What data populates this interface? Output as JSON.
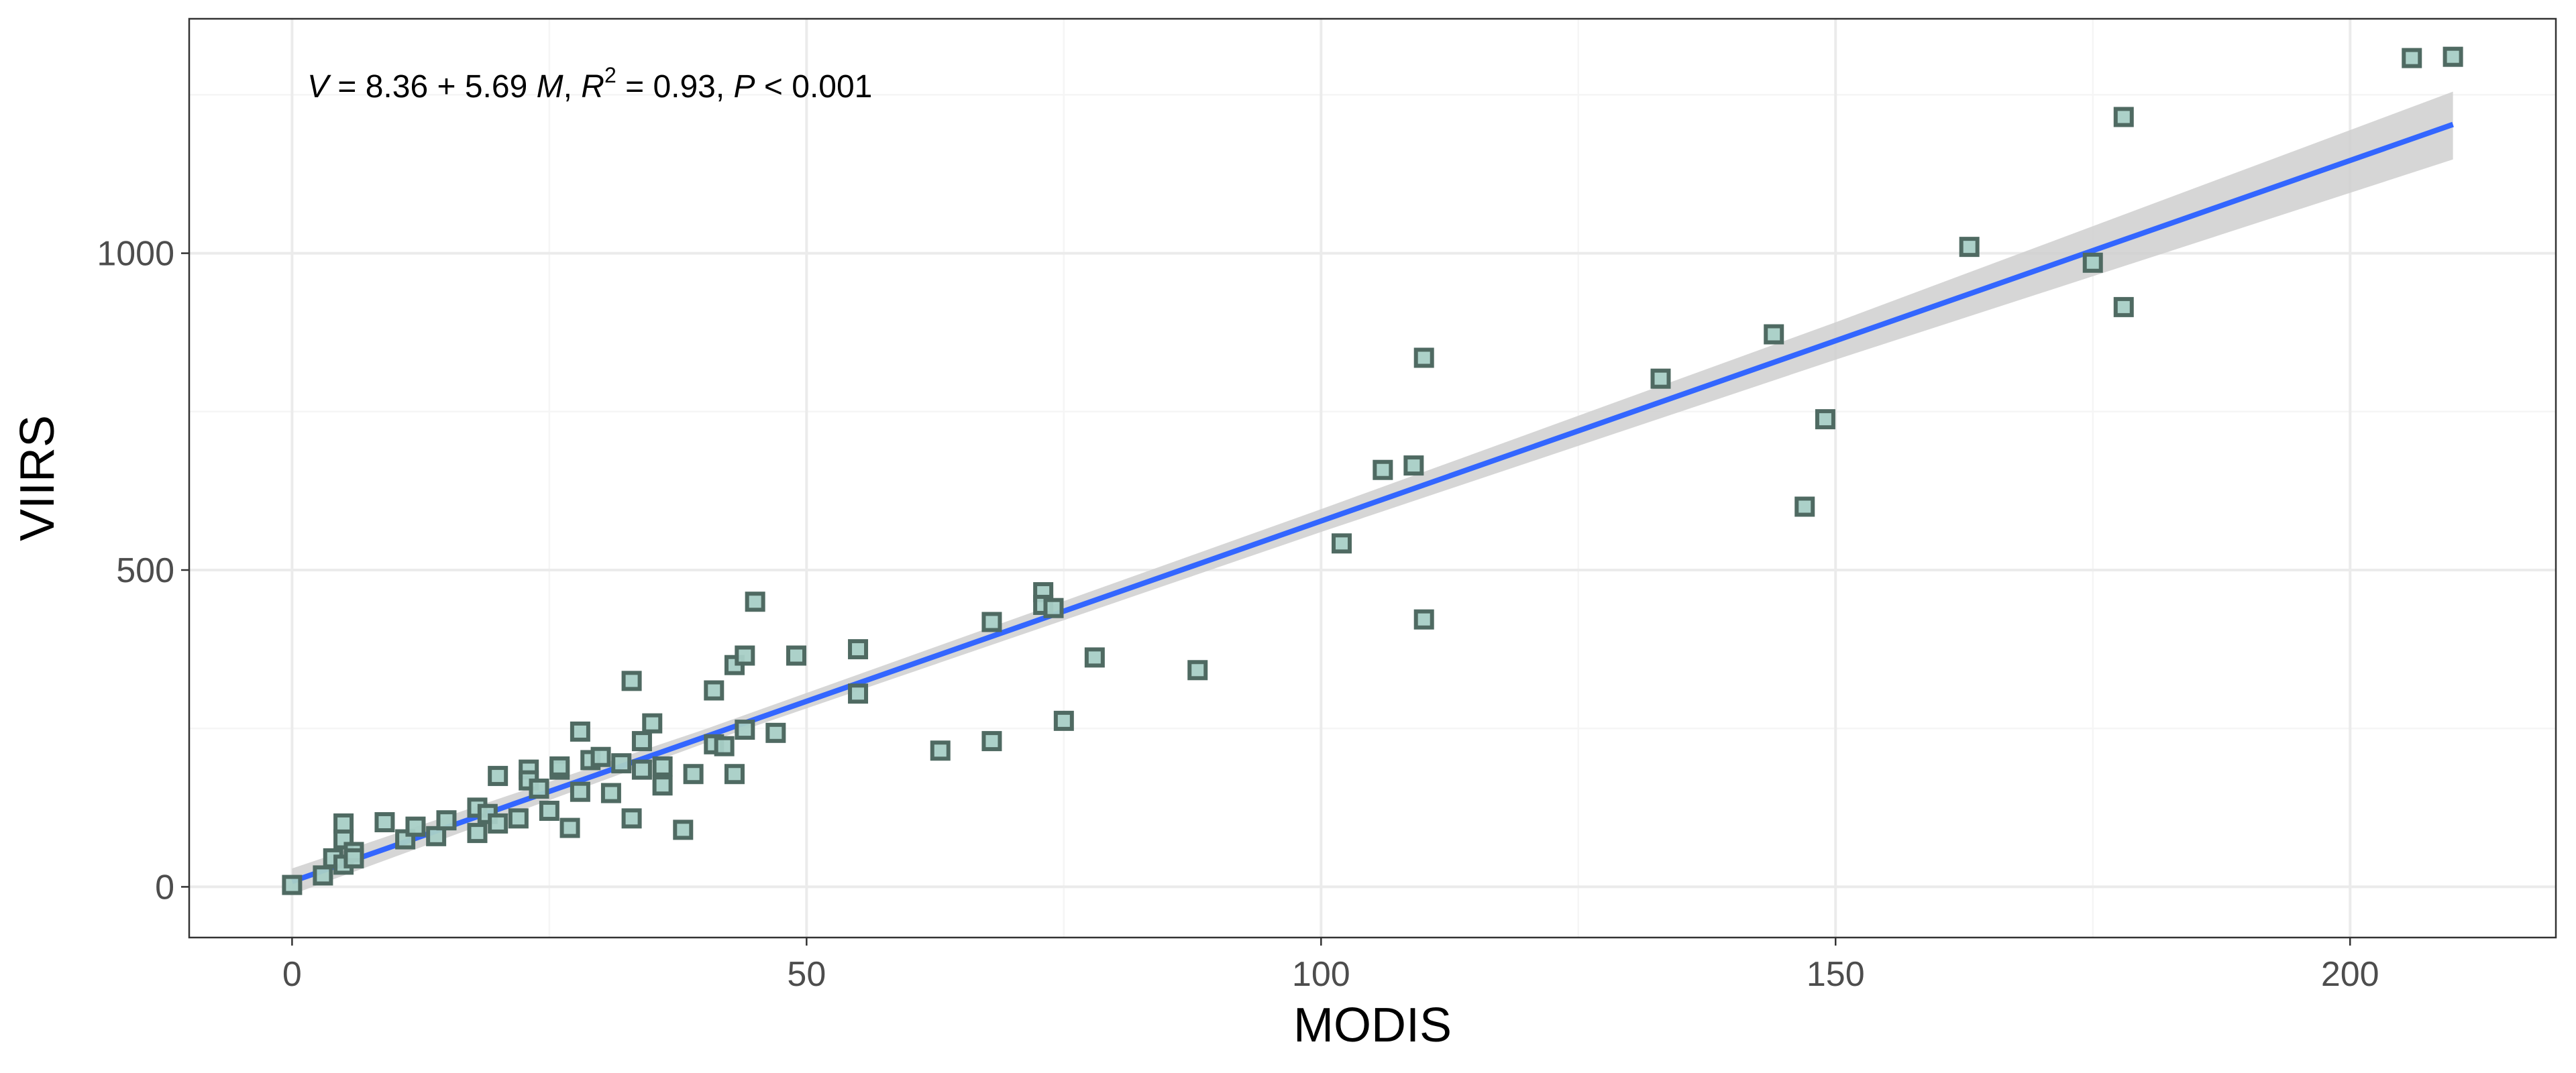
{
  "chart_data": {
    "type": "scatter",
    "title": "",
    "xlabel": "MODIS",
    "ylabel": "VIIRS",
    "xlim": [
      -10,
      220
    ],
    "ylim": [
      -80,
      1370
    ],
    "x_ticks": [
      0,
      50,
      100,
      150,
      200
    ],
    "y_ticks": [
      0,
      500,
      1000
    ],
    "x_tick_labels": [
      "0",
      "50",
      "100",
      "150",
      "200"
    ],
    "y_tick_labels": [
      "0",
      "500",
      "1000"
    ],
    "x_minor_grid": [
      25,
      75,
      125,
      175
    ],
    "y_minor_grid": [
      250,
      750,
      1250
    ],
    "grid": true,
    "legend": "none",
    "annotation": {
      "v": "V",
      "eq_mid": " = 8.36 + 5.69 ",
      "m": "M",
      "sep1": ", ",
      "r": "R",
      "sup": "2",
      "r_rest": " = 0.93, ",
      "p": "P",
      "p_rest": " < 0.001"
    },
    "regression": {
      "intercept": 8.36,
      "slope": 5.69,
      "x_range": [
        0,
        210
      ]
    },
    "confidence_band": [
      {
        "x": 0,
        "lower": -12,
        "upper": 29
      },
      {
        "x": 40,
        "lower": 226,
        "upper": 248
      },
      {
        "x": 100,
        "lower": 560,
        "upper": 596
      },
      {
        "x": 150,
        "lower": 832,
        "upper": 891
      },
      {
        "x": 210,
        "lower": 1148,
        "upper": 1255
      }
    ],
    "colors": {
      "point_fill": "#a8cfc6",
      "point_stroke": "#4f6a62",
      "line": "#3366ff",
      "band": "#cfcfcf",
      "grid_major": "#ebebeb",
      "grid_minor": "#f5f5f5",
      "panel_border": "#333333"
    },
    "points": [
      [
        0,
        3
      ],
      [
        3,
        18
      ],
      [
        4,
        45
      ],
      [
        5,
        35
      ],
      [
        5,
        75
      ],
      [
        5,
        100
      ],
      [
        6,
        55
      ],
      [
        6,
        45
      ],
      [
        9,
        102
      ],
      [
        11,
        75
      ],
      [
        12,
        95
      ],
      [
        14,
        80
      ],
      [
        15,
        105
      ],
      [
        18,
        85
      ],
      [
        18,
        125
      ],
      [
        19,
        115
      ],
      [
        20,
        175
      ],
      [
        20,
        100
      ],
      [
        22,
        108
      ],
      [
        23,
        185
      ],
      [
        23,
        168
      ],
      [
        24,
        155
      ],
      [
        25,
        120
      ],
      [
        26,
        185
      ],
      [
        26,
        190
      ],
      [
        27,
        93
      ],
      [
        28,
        245
      ],
      [
        28,
        150
      ],
      [
        29,
        200
      ],
      [
        30,
        205
      ],
      [
        31,
        148
      ],
      [
        32,
        195
      ],
      [
        33,
        325
      ],
      [
        33,
        108
      ],
      [
        34,
        230
      ],
      [
        34,
        185
      ],
      [
        35,
        258
      ],
      [
        36,
        190
      ],
      [
        36,
        160
      ],
      [
        38,
        90
      ],
      [
        39,
        178
      ],
      [
        41,
        310
      ],
      [
        41,
        225
      ],
      [
        42,
        222
      ],
      [
        43,
        350
      ],
      [
        43,
        178
      ],
      [
        44,
        365
      ],
      [
        44,
        248
      ],
      [
        45,
        450
      ],
      [
        47,
        243
      ],
      [
        49,
        365
      ],
      [
        55,
        375
      ],
      [
        55,
        305
      ],
      [
        63,
        215
      ],
      [
        68,
        418
      ],
      [
        68,
        230
      ],
      [
        73,
        465
      ],
      [
        73,
        445
      ],
      [
        74,
        440
      ],
      [
        75,
        262
      ],
      [
        78,
        362
      ],
      [
        88,
        342
      ],
      [
        102,
        542
      ],
      [
        106,
        658
      ],
      [
        109,
        665
      ],
      [
        110,
        835
      ],
      [
        110,
        422
      ],
      [
        133,
        802
      ],
      [
        144,
        872
      ],
      [
        147,
        600
      ],
      [
        149,
        738
      ],
      [
        163,
        1010
      ],
      [
        175,
        985
      ],
      [
        178,
        915
      ],
      [
        178,
        1215
      ],
      [
        206,
        1308
      ],
      [
        210,
        1310
      ]
    ]
  }
}
